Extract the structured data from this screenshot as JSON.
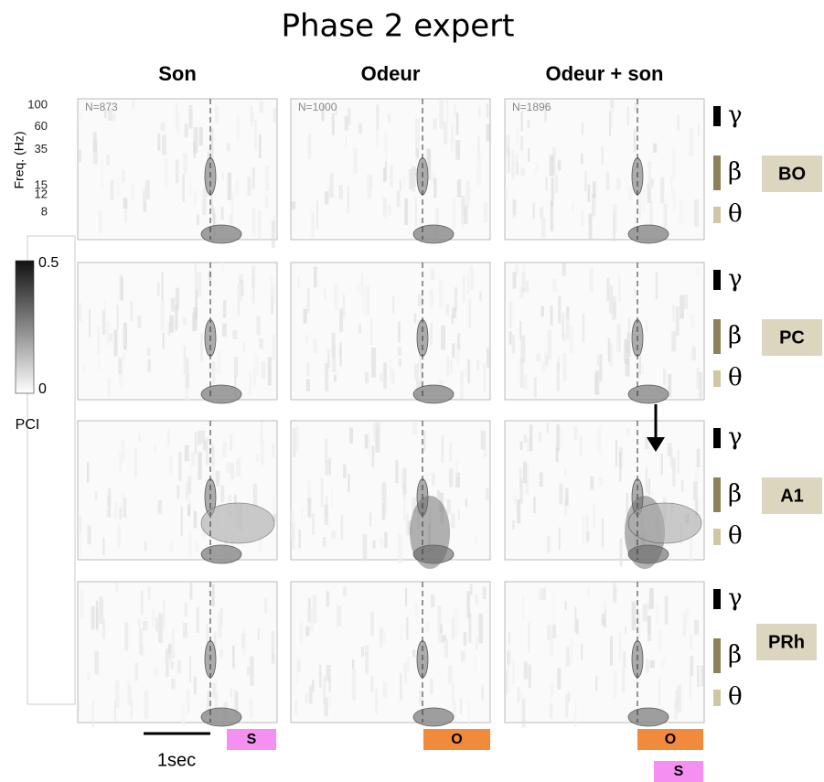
{
  "title": "Phase 2 expert",
  "columns": [
    "Son",
    "Odeur",
    "Odeur + son"
  ],
  "rows": [
    "BO",
    "PC",
    "A1",
    "PRh"
  ],
  "y_axis": {
    "label": "Freq. (Hz)",
    "ticks": [
      100,
      60,
      35,
      15,
      12,
      8
    ],
    "scale": "log"
  },
  "n_labels": [
    "N=873",
    "N=1000",
    "N=1896"
  ],
  "colorbar": {
    "label": "PCI",
    "max": 0.5,
    "min": 0
  },
  "bands": [
    "γ",
    "β",
    "θ"
  ],
  "scale_bar": "1sec",
  "stimuli": [
    [
      "S"
    ],
    [
      "O"
    ],
    [
      "O",
      "S"
    ]
  ]
}
